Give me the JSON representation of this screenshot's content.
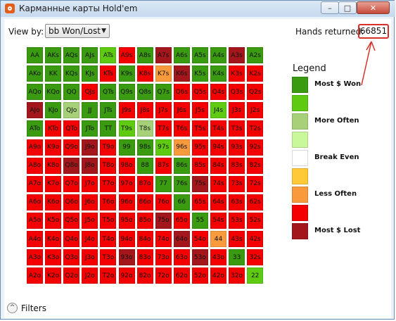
{
  "window": {
    "title": "Карманные карты Hold'em",
    "min_label": "–",
    "max_label": "□",
    "close_label": "✕"
  },
  "toolbar": {
    "viewby_label": "View by:",
    "viewby_value": "bb Won/Lost",
    "hands_label": "Hands returned:",
    "hands_value": "66851"
  },
  "colors": {
    "dg": "#3a9a10",
    "lg": "#5ecb12",
    "pg": "#a6d178",
    "vl": "#c9f89a",
    "wh": "#ffffff",
    "ye": "#ffc938",
    "or": "#f99a3c",
    "rd": "#f40000",
    "dr": "#a3161b"
  },
  "grid": {
    "rows": [
      [
        [
          "AA",
          "dg"
        ],
        [
          "AKs",
          "dg"
        ],
        [
          "AQs",
          "dg"
        ],
        [
          "AJs",
          "dg"
        ],
        [
          "ATs",
          "lg"
        ],
        [
          "A9s",
          "rd"
        ],
        [
          "A8s",
          "dg"
        ],
        [
          "A7s",
          "dr"
        ],
        [
          "A6s",
          "dg"
        ],
        [
          "A5s",
          "dg"
        ],
        [
          "A4s",
          "dg"
        ],
        [
          "A3s",
          "dr"
        ],
        [
          "A2s",
          "dg"
        ]
      ],
      [
        [
          "AKo",
          "dg"
        ],
        [
          "KK",
          "dg"
        ],
        [
          "KQs",
          "dg"
        ],
        [
          "KJs",
          "dg"
        ],
        [
          "KTs",
          "rd"
        ],
        [
          "K9s",
          "dg"
        ],
        [
          "K8s",
          "rd"
        ],
        [
          "K7s",
          "or"
        ],
        [
          "K6s",
          "dr"
        ],
        [
          "K5s",
          "dg"
        ],
        [
          "K4s",
          "dg"
        ],
        [
          "K3s",
          "rd"
        ],
        [
          "K2s",
          "rd"
        ]
      ],
      [
        [
          "AQo",
          "dg"
        ],
        [
          "KQo",
          "dg"
        ],
        [
          "QQ",
          "dg"
        ],
        [
          "QJs",
          "rd"
        ],
        [
          "QTs",
          "dg"
        ],
        [
          "Q9s",
          "dg"
        ],
        [
          "Q8s",
          "dg"
        ],
        [
          "Q7s",
          "dg"
        ],
        [
          "Q6s",
          "rd"
        ],
        [
          "Q5s",
          "rd"
        ],
        [
          "Q4s",
          "rd"
        ],
        [
          "Q3s",
          "rd"
        ],
        [
          "Q2s",
          "rd"
        ]
      ],
      [
        [
          "AJo",
          "dr"
        ],
        [
          "KJo",
          "dg"
        ],
        [
          "QJo",
          "pg"
        ],
        [
          "JJ",
          "dg"
        ],
        [
          "JTs",
          "dg"
        ],
        [
          "J9s",
          "rd"
        ],
        [
          "J8s",
          "rd"
        ],
        [
          "J7s",
          "rd"
        ],
        [
          "J6s",
          "rd"
        ],
        [
          "J5s",
          "rd"
        ],
        [
          "J4s",
          "lg"
        ],
        [
          "J3s",
          "rd"
        ],
        [
          "J2s",
          "rd"
        ]
      ],
      [
        [
          "ATo",
          "dg"
        ],
        [
          "KTo",
          "rd"
        ],
        [
          "QTo",
          "rd"
        ],
        [
          "JTo",
          "dg"
        ],
        [
          "TT",
          "dg"
        ],
        [
          "T9s",
          "lg"
        ],
        [
          "T8s",
          "pg"
        ],
        [
          "T7s",
          "rd"
        ],
        [
          "T6s",
          "rd"
        ],
        [
          "T5s",
          "rd"
        ],
        [
          "T4s",
          "rd"
        ],
        [
          "T3s",
          "rd"
        ],
        [
          "T2s",
          "rd"
        ]
      ],
      [
        [
          "A9o",
          "rd"
        ],
        [
          "K9o",
          "rd"
        ],
        [
          "Q9o",
          "rd"
        ],
        [
          "J9o",
          "dr"
        ],
        [
          "T9o",
          "rd"
        ],
        [
          "99",
          "dg"
        ],
        [
          "98s",
          "dg"
        ],
        [
          "97s",
          "lg"
        ],
        [
          "96s",
          "or"
        ],
        [
          "95s",
          "rd"
        ],
        [
          "94s",
          "rd"
        ],
        [
          "93s",
          "rd"
        ],
        [
          "92s",
          "rd"
        ]
      ],
      [
        [
          "A8o",
          "rd"
        ],
        [
          "K8o",
          "rd"
        ],
        [
          "Q8o",
          "dr"
        ],
        [
          "J8o",
          "dr"
        ],
        [
          "T8o",
          "rd"
        ],
        [
          "98o",
          "rd"
        ],
        [
          "88",
          "dg"
        ],
        [
          "87s",
          "rd"
        ],
        [
          "86s",
          "dg"
        ],
        [
          "85s",
          "rd"
        ],
        [
          "84s",
          "rd"
        ],
        [
          "83s",
          "rd"
        ],
        [
          "82s",
          "rd"
        ]
      ],
      [
        [
          "A7o",
          "rd"
        ],
        [
          "K7o",
          "rd"
        ],
        [
          "Q7o",
          "rd"
        ],
        [
          "J7o",
          "rd"
        ],
        [
          "T7o",
          "rd"
        ],
        [
          "97o",
          "rd"
        ],
        [
          "87o",
          "rd"
        ],
        [
          "77",
          "dg"
        ],
        [
          "76s",
          "dg"
        ],
        [
          "75s",
          "dr"
        ],
        [
          "74s",
          "rd"
        ],
        [
          "73s",
          "rd"
        ],
        [
          "72s",
          "rd"
        ]
      ],
      [
        [
          "A6o",
          "rd"
        ],
        [
          "K6o",
          "rd"
        ],
        [
          "Q6o",
          "rd"
        ],
        [
          "J6o",
          "rd"
        ],
        [
          "T6o",
          "rd"
        ],
        [
          "96o",
          "rd"
        ],
        [
          "86o",
          "rd"
        ],
        [
          "76o",
          "rd"
        ],
        [
          "66",
          "dg"
        ],
        [
          "65s",
          "rd"
        ],
        [
          "64s",
          "rd"
        ],
        [
          "63s",
          "rd"
        ],
        [
          "62s",
          "rd"
        ]
      ],
      [
        [
          "A5o",
          "rd"
        ],
        [
          "K5o",
          "rd"
        ],
        [
          "Q5o",
          "rd"
        ],
        [
          "J5o",
          "rd"
        ],
        [
          "T5o",
          "rd"
        ],
        [
          "95o",
          "rd"
        ],
        [
          "85o",
          "rd"
        ],
        [
          "75o",
          "dr"
        ],
        [
          "65o",
          "rd"
        ],
        [
          "55",
          "dg"
        ],
        [
          "54s",
          "rd"
        ],
        [
          "53s",
          "rd"
        ],
        [
          "52s",
          "rd"
        ]
      ],
      [
        [
          "A4o",
          "rd"
        ],
        [
          "K4o",
          "rd"
        ],
        [
          "Q4o",
          "rd"
        ],
        [
          "J4o",
          "rd"
        ],
        [
          "T4o",
          "rd"
        ],
        [
          "94o",
          "rd"
        ],
        [
          "84o",
          "rd"
        ],
        [
          "74o",
          "rd"
        ],
        [
          "64o",
          "dr"
        ],
        [
          "54o",
          "rd"
        ],
        [
          "44",
          "or"
        ],
        [
          "43s",
          "rd"
        ],
        [
          "42s",
          "rd"
        ]
      ],
      [
        [
          "A3o",
          "rd"
        ],
        [
          "K3o",
          "rd"
        ],
        [
          "Q3o",
          "rd"
        ],
        [
          "J3o",
          "rd"
        ],
        [
          "T3o",
          "rd"
        ],
        [
          "93o",
          "dr"
        ],
        [
          "83o",
          "rd"
        ],
        [
          "73o",
          "rd"
        ],
        [
          "63o",
          "rd"
        ],
        [
          "53o",
          "dr"
        ],
        [
          "43o",
          "rd"
        ],
        [
          "33",
          "dg"
        ],
        [
          "32s",
          "rd"
        ]
      ],
      [
        [
          "A2o",
          "rd"
        ],
        [
          "K2o",
          "rd"
        ],
        [
          "Q2o",
          "rd"
        ],
        [
          "J2o",
          "rd"
        ],
        [
          "T2o",
          "rd"
        ],
        [
          "92o",
          "rd"
        ],
        [
          "82o",
          "rd"
        ],
        [
          "72o",
          "rd"
        ],
        [
          "62o",
          "rd"
        ],
        [
          "52o",
          "rd"
        ],
        [
          "42o",
          "rd"
        ],
        [
          "32o",
          "rd"
        ],
        [
          "22",
          "lg"
        ]
      ]
    ]
  },
  "legend": {
    "title": "Legend",
    "items": [
      {
        "color": "dg",
        "label": "Most $ Won"
      },
      {
        "color": "lg",
        "label": ""
      },
      {
        "color": "pg",
        "label": "More Often"
      },
      {
        "color": "vl",
        "label": ""
      },
      {
        "color": "wh",
        "label": "Break Even"
      },
      {
        "color": "ye",
        "label": ""
      },
      {
        "color": "or",
        "label": "Less Often"
      },
      {
        "color": "rd",
        "label": ""
      },
      {
        "color": "dr",
        "label": "Most $ Lost"
      }
    ]
  },
  "filters": {
    "label": "Filters"
  }
}
